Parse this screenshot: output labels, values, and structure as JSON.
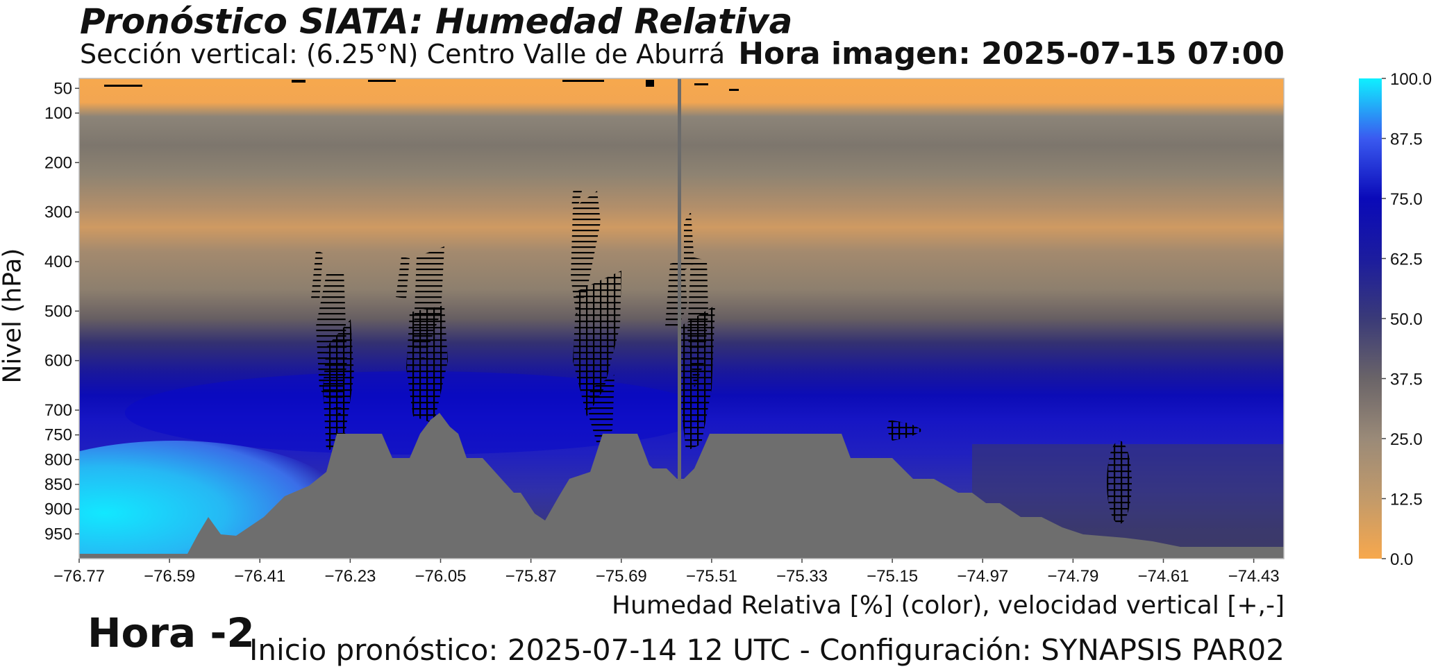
{
  "header": {
    "title": "Pronóstico SIATA: Humedad Relativa",
    "subtitle": "Sección vertical: (6.25°N) Centro Valle de Aburrá",
    "image_time": "Hora imagen: 2025-07-15 07:00"
  },
  "footer": {
    "hour_offset": "Hora -2",
    "forecast_info": "Inicio pronóstico: 2025-07-14 12 UTC - Configuración: SYNAPSIS PAR02"
  },
  "chart_data": {
    "type": "heatmap",
    "title": "Pronóstico SIATA: Humedad Relativa",
    "xlabel": "Humedad Relativa [%] (color), velocidad vertical [+,-]",
    "ylabel": "Nivel (hPa)",
    "x_ticks": [
      "−76.77",
      "−76.59",
      "−76.41",
      "−76.23",
      "−76.05",
      "−75.87",
      "−75.69",
      "−75.51",
      "−75.33",
      "−75.15",
      "−74.97",
      "−74.79",
      "−74.61",
      "−74.43"
    ],
    "x_tick_values": [
      -76.77,
      -76.59,
      -76.41,
      -76.23,
      -76.05,
      -75.87,
      -75.69,
      -75.51,
      -75.33,
      -75.15,
      -74.97,
      -74.79,
      -74.61,
      -74.43
    ],
    "xlim": [
      -76.77,
      -74.37
    ],
    "y_ticks": [
      "50",
      "100",
      "200",
      "300",
      "400",
      "500",
      "600",
      "700",
      "750",
      "800",
      "850",
      "900",
      "950"
    ],
    "y_tick_values": [
      50,
      100,
      200,
      300,
      400,
      500,
      600,
      700,
      750,
      800,
      850,
      900,
      950
    ],
    "ylim": [
      1000,
      30
    ],
    "colorbar": {
      "ticks": [
        "0.0",
        "12.5",
        "25.0",
        "37.5",
        "50.0",
        "62.5",
        "75.0",
        "87.5",
        "100.0"
      ],
      "range": [
        0,
        100
      ],
      "colors": [
        "#f7a84d",
        "#c29a6a",
        "#9a8a78",
        "#5c586b",
        "#3a3a78",
        "#1c1c9e",
        "#0a0ab8",
        "#3a5af0",
        "#0ff0ff"
      ]
    },
    "vertical_marker_lon": -75.57,
    "terrain_color": "#6e6e6e",
    "hatch_color": "#000000",
    "grid": false
  }
}
